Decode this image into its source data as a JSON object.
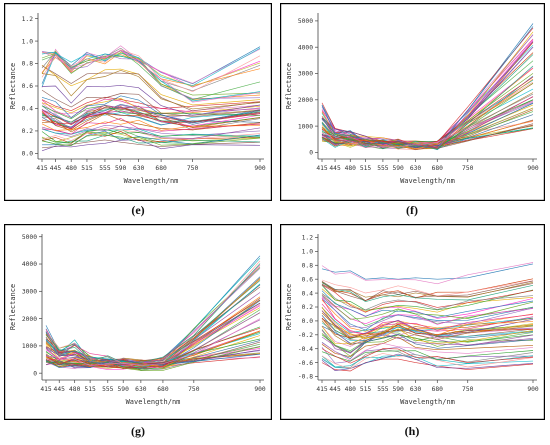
{
  "chart_data": [
    {
      "type": "line",
      "caption": "(e)",
      "xlabel": "Wavelength/nm",
      "ylabel": "Reflectance",
      "x": [
        415,
        445,
        480,
        515,
        555,
        590,
        630,
        680,
        750,
        900
      ],
      "xticks": [
        "415",
        "445",
        "480",
        "515",
        "555",
        "590",
        "630",
        "680",
        "750",
        "900"
      ],
      "ylim": [
        -0.05,
        1.25
      ],
      "yticks": [
        "0.0",
        "0.2",
        "0.4",
        "0.6",
        "0.8",
        "1.0",
        "1.2"
      ],
      "series_count": 55,
      "series": [
        {
          "values": [
            0.62,
            0.9,
            0.78,
            0.9,
            0.82,
            0.92,
            0.85,
            0.72,
            0.62,
            0.95
          ]
        },
        {
          "values": [
            0.9,
            0.88,
            0.72,
            0.8,
            0.85,
            0.88,
            0.82,
            0.62,
            0.48,
            0.52
          ]
        },
        {
          "values": [
            0.35,
            0.28,
            0.22,
            0.32,
            0.36,
            0.38,
            0.35,
            0.28,
            0.24,
            0.32
          ]
        },
        {
          "values": [
            0.48,
            0.42,
            0.38,
            0.45,
            0.5,
            0.48,
            0.45,
            0.4,
            0.42,
            0.46
          ]
        },
        {
          "values": [
            0.22,
            0.18,
            0.15,
            0.2,
            0.25,
            0.24,
            0.22,
            0.18,
            0.16,
            0.2
          ]
        },
        {
          "values": [
            0.05,
            0.06,
            0.08,
            0.1,
            0.12,
            0.1,
            0.08,
            0.06,
            0.08,
            0.1
          ]
        }
      ]
    },
    {
      "type": "line",
      "caption": "(f)",
      "xlabel": "Wavelength/nm",
      "ylabel": "Reflectance",
      "x": [
        415,
        445,
        480,
        515,
        555,
        590,
        630,
        680,
        750,
        900
      ],
      "xticks": [
        "415",
        "445",
        "480",
        "515",
        "555",
        "590",
        "630",
        "680",
        "750",
        "900"
      ],
      "ylim": [
        -250,
        5300
      ],
      "yticks": [
        "0",
        "1000",
        "2000",
        "3000",
        "4000",
        "5000"
      ],
      "series_count": 55,
      "series": [
        {
          "values": [
            1800,
            900,
            700,
            500,
            400,
            350,
            300,
            250,
            1600,
            4900
          ]
        },
        {
          "values": [
            1100,
            600,
            550,
            420,
            380,
            330,
            300,
            280,
            1200,
            3200
          ]
        },
        {
          "values": [
            700,
            450,
            420,
            350,
            320,
            300,
            280,
            260,
            800,
            2000
          ]
        },
        {
          "values": [
            500,
            350,
            330,
            300,
            280,
            270,
            260,
            240,
            450,
            900
          ]
        }
      ]
    },
    {
      "type": "line",
      "caption": "(g)",
      "xlabel": "Wavelength/nm",
      "ylabel": "Reflectance",
      "x": [
        415,
        445,
        480,
        515,
        555,
        590,
        630,
        680,
        750,
        900
      ],
      "xticks": [
        "415",
        "445",
        "480",
        "515",
        "555",
        "590",
        "630",
        "680",
        "750",
        "900"
      ],
      "ylim": [
        -250,
        5100
      ],
      "yticks": [
        "0",
        "1000",
        "2000",
        "3000",
        "4000",
        "5000"
      ],
      "series_count": 55,
      "series": [
        {
          "values": [
            1750,
            800,
            1100,
            600,
            500,
            450,
            400,
            550,
            1600,
            4300
          ]
        },
        {
          "values": [
            1100,
            650,
            750,
            480,
            420,
            380,
            350,
            380,
            1100,
            2800
          ]
        },
        {
          "values": [
            600,
            420,
            480,
            350,
            320,
            300,
            290,
            300,
            700,
            1500
          ]
        },
        {
          "values": [
            400,
            300,
            320,
            260,
            250,
            240,
            230,
            240,
            380,
            600
          ]
        }
      ]
    },
    {
      "type": "line",
      "caption": "(h)",
      "xlabel": "Wavelength/nm",
      "ylabel": "Reflectance",
      "x": [
        415,
        445,
        480,
        515,
        555,
        590,
        630,
        680,
        750,
        900
      ],
      "xticks": [
        "415",
        "445",
        "480",
        "515",
        "555",
        "590",
        "630",
        "680",
        "750",
        "900"
      ],
      "ylim": [
        -0.85,
        1.25
      ],
      "yticks": [
        "-0.8",
        "-0.6",
        "-0.4",
        "-0.2",
        "0.0",
        "0.2",
        "0.4",
        "0.6",
        "0.8",
        "1.0",
        "1.2"
      ],
      "series_count": 55,
      "series": [
        {
          "values": [
            0.75,
            0.7,
            0.72,
            0.6,
            0.62,
            0.6,
            0.62,
            0.6,
            0.62,
            0.82
          ]
        },
        {
          "values": [
            0.3,
            0.1,
            -0.1,
            -0.15,
            -0.05,
            0.0,
            -0.05,
            -0.1,
            -0.05,
            0.1
          ]
        },
        {
          "values": [
            -0.2,
            -0.35,
            -0.45,
            -0.3,
            -0.25,
            -0.2,
            -0.25,
            -0.3,
            -0.3,
            -0.2
          ]
        },
        {
          "values": [
            -0.6,
            -0.7,
            -0.72,
            -0.6,
            -0.55,
            -0.55,
            -0.6,
            -0.65,
            -0.7,
            -0.62
          ]
        }
      ]
    }
  ]
}
